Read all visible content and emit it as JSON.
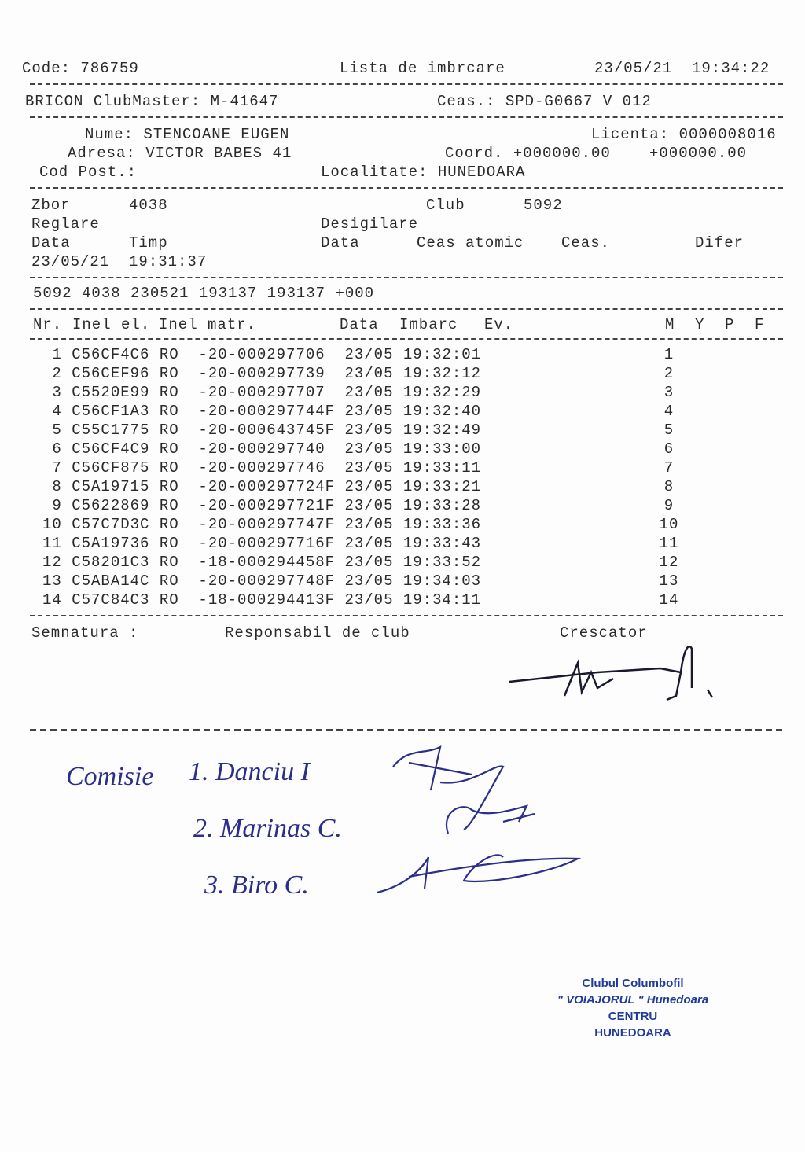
{
  "header": {
    "code": "Code: 786759",
    "title": "Lista de imbrcare",
    "date": "23/05/21",
    "time": "19:34:22"
  },
  "system": {
    "clubmaster": "BRICON ClubMaster: M-41647",
    "clock": "Ceas.: SPD-G0667 V 012"
  },
  "owner": {
    "name": "Nume: STENCOANE EUGEN",
    "license": "Licenta: 0000008016",
    "address": "Adresa: VICTOR BABES 41",
    "coord": "Coord. +000000.00",
    "coord2": "+000000.00",
    "postal": "Cod Post.:",
    "locality": "Localitate: HUNEDOARA"
  },
  "flight": {
    "zbor_label": "Zbor",
    "zbor": "4038",
    "club_label": "Club",
    "club": "5092",
    "reglare": "Reglare",
    "desigilare": "Desigilare",
    "data_label": "Data",
    "timp_label": "Timp",
    "data2_label": "Data",
    "ceas_atomic": "Ceas atomic",
    "ceas": "Ceas.",
    "difer": "Difer",
    "data": "23/05/21",
    "timp": "19:31:37",
    "summary": "5092 4038 230521 193137 193137 +000"
  },
  "table": {
    "headers": {
      "nr": "Nr.",
      "inel_el": "Inel el.",
      "inel_matr": "Inel matr.",
      "data": "Data",
      "imbarc": "Imbarc",
      "ev": "Ev.",
      "m": "M",
      "y": "Y",
      "p": "P",
      "f": "F"
    },
    "rows": [
      {
        "line": " 1 C56CF4C6 RO  -20-000297706  23/05 19:32:01",
        "m": "1"
      },
      {
        "line": " 2 C56CEF96 RO  -20-000297739  23/05 19:32:12",
        "m": "2"
      },
      {
        "line": " 3 C5520E99 RO  -20-000297707  23/05 19:32:29",
        "m": "3"
      },
      {
        "line": " 4 C56CF1A3 RO  -20-000297744F 23/05 19:32:40",
        "m": "4"
      },
      {
        "line": " 5 C55C1775 RO  -20-000643745F 23/05 19:32:49",
        "m": "5"
      },
      {
        "line": " 6 C56CF4C9 RO  -20-000297740  23/05 19:33:00",
        "m": "6"
      },
      {
        "line": " 7 C56CF875 RO  -20-000297746  23/05 19:33:11",
        "m": "7"
      },
      {
        "line": " 8 C5A19715 RO  -20-000297724F 23/05 19:33:21",
        "m": "8"
      },
      {
        "line": " 9 C5622869 RO  -20-000297721F 23/05 19:33:28",
        "m": "9"
      },
      {
        "line": "10 C57C7D3C RO  -20-000297747F 23/05 19:33:36",
        "m": "10"
      },
      {
        "line": "11 C5A19736 RO  -20-000297716F 23/05 19:33:43",
        "m": "11"
      },
      {
        "line": "12 C58201C3 RO  -18-000294458F 23/05 19:33:52",
        "m": "12"
      },
      {
        "line": "13 C5ABA14C RO  -20-000297748F 23/05 19:34:03",
        "m": "13"
      },
      {
        "line": "14 C57C84C3 RO  -18-000294413F 23/05 19:34:11",
        "m": "14"
      }
    ]
  },
  "signatures": {
    "semnatura": "Semnatura :",
    "responsabil": "Responsabil de club",
    "crescator": "Crescator"
  },
  "handwritten": {
    "comisie": "Comisie",
    "m1": "1. Danciu I",
    "m2": "2. Marinas C.",
    "m3": "3. Biro C."
  },
  "stamp": {
    "line1": "Clubul Columbofil",
    "line2": "\" VOIAJORUL \" Hunedoara",
    "line3": "CENTRU",
    "line4": "HUNEDOARA"
  },
  "colors": {
    "ink": "#2b2f8a",
    "stamp": "#1f3b9c"
  }
}
